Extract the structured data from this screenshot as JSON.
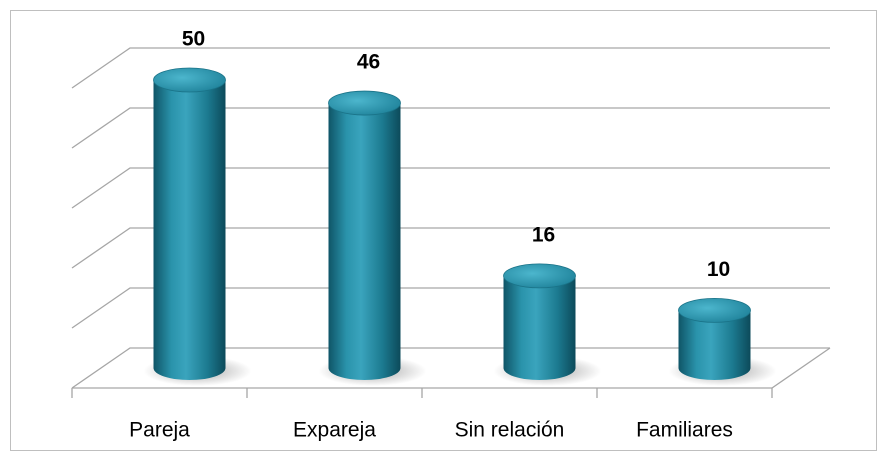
{
  "chart_data": {
    "type": "bar3d",
    "categories": [
      "Pareja",
      "Expareja",
      "Sin relación",
      "Familiares"
    ],
    "values": [
      50,
      46,
      16,
      10
    ],
    "color": "#1f8299",
    "ylim": [
      0,
      50
    ],
    "yticks": [
      0,
      10,
      20,
      30,
      40,
      50
    ],
    "grid": true
  }
}
